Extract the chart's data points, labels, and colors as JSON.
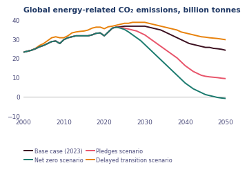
{
  "title": "Global energy-related CO₂ emissions, billion tonnes",
  "title_color": "#1f3864",
  "title_fontsize": 7.8,
  "xlim": [
    2000,
    2050
  ],
  "ylim": [
    -10,
    42
  ],
  "yticks": [
    -10,
    0,
    10,
    20,
    30,
    40
  ],
  "xticks": [
    2000,
    2010,
    2020,
    2030,
    2040,
    2050
  ],
  "zero_line_color": "#aaaaaa",
  "background_color": "#ffffff",
  "colors": {
    "base_case": "#3b1020",
    "net_zero": "#1a7a6e",
    "pledges": "#e8546a",
    "delayed": "#e8820c"
  },
  "legend_labels": [
    "Base case (2023)",
    "Net zero scenario",
    "Pledges scenario",
    "Delayed transition scenario"
  ],
  "base_case": {
    "x": [
      2000,
      2001,
      2002,
      2003,
      2004,
      2005,
      2006,
      2007,
      2008,
      2009,
      2010,
      2011,
      2012,
      2013,
      2014,
      2015,
      2016,
      2017,
      2018,
      2019,
      2020,
      2021,
      2022,
      2023,
      2024,
      2025,
      2026,
      2027,
      2028,
      2029,
      2030,
      2031,
      2032,
      2033,
      2034,
      2035,
      2036,
      2037,
      2038,
      2039,
      2040,
      2041,
      2042,
      2043,
      2044,
      2045,
      2046,
      2047,
      2048,
      2049,
      2050
    ],
    "y": [
      23.0,
      23.5,
      24.0,
      24.8,
      25.8,
      26.5,
      27.5,
      28.5,
      28.8,
      27.5,
      29.5,
      30.5,
      31.0,
      31.5,
      31.5,
      31.5,
      31.5,
      32.0,
      32.8,
      33.0,
      31.5,
      33.5,
      35.5,
      36.0,
      36.2,
      36.5,
      36.5,
      36.5,
      36.5,
      36.5,
      36.5,
      36.0,
      35.5,
      35.0,
      34.5,
      33.5,
      32.5,
      31.5,
      30.5,
      29.5,
      28.5,
      27.5,
      27.0,
      26.5,
      26.0,
      25.5,
      25.5,
      25.0,
      24.8,
      24.5,
      24.0
    ]
  },
  "net_zero": {
    "x": [
      2000,
      2001,
      2002,
      2003,
      2004,
      2005,
      2006,
      2007,
      2008,
      2009,
      2010,
      2011,
      2012,
      2013,
      2014,
      2015,
      2016,
      2017,
      2018,
      2019,
      2020,
      2021,
      2022,
      2023,
      2024,
      2025,
      2026,
      2027,
      2028,
      2029,
      2030,
      2031,
      2032,
      2033,
      2034,
      2035,
      2036,
      2037,
      2038,
      2039,
      2040,
      2041,
      2042,
      2043,
      2044,
      2045,
      2046,
      2047,
      2048,
      2049,
      2050
    ],
    "y": [
      23.0,
      23.5,
      24.0,
      24.8,
      25.8,
      26.5,
      27.5,
      28.5,
      28.8,
      27.5,
      29.5,
      30.5,
      31.0,
      31.5,
      31.5,
      31.5,
      31.5,
      32.0,
      32.8,
      33.0,
      31.5,
      33.5,
      35.5,
      36.0,
      35.5,
      34.8,
      33.5,
      32.0,
      30.5,
      29.0,
      27.0,
      25.0,
      23.0,
      21.0,
      19.0,
      17.0,
      15.0,
      13.0,
      11.0,
      9.0,
      7.0,
      5.5,
      4.0,
      3.0,
      2.0,
      1.0,
      0.5,
      0.0,
      -0.5,
      -0.8,
      -1.0
    ]
  },
  "pledges": {
    "x": [
      2000,
      2001,
      2002,
      2003,
      2004,
      2005,
      2006,
      2007,
      2008,
      2009,
      2010,
      2011,
      2012,
      2013,
      2014,
      2015,
      2016,
      2017,
      2018,
      2019,
      2020,
      2021,
      2022,
      2023,
      2024,
      2025,
      2026,
      2027,
      2028,
      2029,
      2030,
      2031,
      2032,
      2033,
      2034,
      2035,
      2036,
      2037,
      2038,
      2039,
      2040,
      2041,
      2042,
      2043,
      2044,
      2045,
      2046,
      2047,
      2048,
      2049,
      2050
    ],
    "y": [
      23.0,
      23.5,
      24.0,
      24.8,
      25.8,
      26.5,
      27.5,
      28.5,
      28.8,
      27.5,
      29.5,
      30.5,
      31.0,
      31.5,
      31.5,
      31.5,
      31.5,
      32.0,
      32.8,
      33.0,
      31.5,
      33.5,
      35.5,
      36.0,
      35.8,
      35.5,
      35.0,
      34.5,
      34.0,
      33.0,
      32.0,
      30.5,
      29.0,
      27.5,
      26.0,
      24.5,
      23.0,
      21.5,
      20.0,
      18.0,
      16.0,
      14.5,
      13.0,
      12.0,
      11.0,
      10.5,
      10.2,
      10.0,
      9.8,
      9.5,
      9.3
    ]
  },
  "delayed": {
    "x": [
      2000,
      2001,
      2002,
      2003,
      2004,
      2005,
      2006,
      2007,
      2008,
      2009,
      2010,
      2011,
      2012,
      2013,
      2014,
      2015,
      2016,
      2017,
      2018,
      2019,
      2020,
      2021,
      2022,
      2023,
      2024,
      2025,
      2026,
      2027,
      2028,
      2029,
      2030,
      2031,
      2032,
      2033,
      2034,
      2035,
      2036,
      2037,
      2038,
      2039,
      2040,
      2041,
      2042,
      2043,
      2044,
      2045,
      2046,
      2047,
      2048,
      2049,
      2050
    ],
    "y": [
      23.0,
      23.5,
      24.0,
      25.0,
      26.5,
      27.5,
      29.0,
      30.5,
      31.0,
      30.5,
      30.5,
      31.5,
      33.0,
      33.5,
      33.8,
      34.0,
      34.5,
      35.5,
      36.0,
      36.0,
      35.2,
      36.2,
      36.5,
      37.0,
      37.5,
      38.0,
      38.0,
      38.5,
      38.5,
      38.5,
      38.5,
      38.0,
      37.5,
      37.0,
      36.5,
      36.0,
      35.5,
      35.0,
      34.5,
      33.5,
      33.0,
      32.5,
      32.0,
      31.5,
      31.0,
      30.8,
      30.5,
      30.3,
      30.1,
      29.8,
      29.5
    ]
  }
}
